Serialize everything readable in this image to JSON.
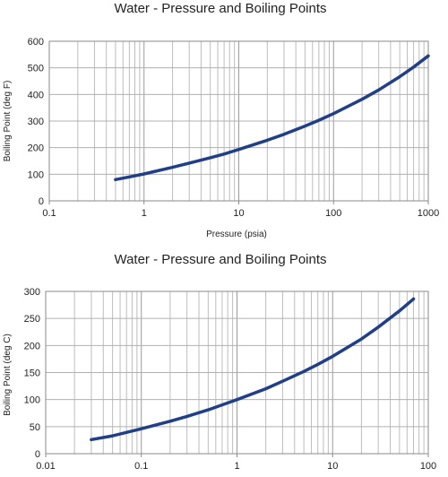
{
  "chart_data": [
    {
      "type": "line",
      "title": "Water - Pressure and Boiling Points",
      "xlabel": "Pressure (psia)",
      "ylabel": "Boiling Point (deg F)",
      "x_scale": "log",
      "xlim": [
        0.1,
        1000
      ],
      "ylim": [
        0,
        600
      ],
      "grid": true,
      "x_ticks": [
        {
          "value": 0.1,
          "label": "0.1"
        },
        {
          "value": 1,
          "label": "1"
        },
        {
          "value": 10,
          "label": "10"
        },
        {
          "value": 100,
          "label": "100"
        },
        {
          "value": 1000,
          "label": "1000"
        }
      ],
      "y_ticks": [
        {
          "value": 0,
          "label": "0"
        },
        {
          "value": 100,
          "label": "100"
        },
        {
          "value": 200,
          "label": "200"
        },
        {
          "value": 300,
          "label": "300"
        },
        {
          "value": 400,
          "label": "400"
        },
        {
          "value": 500,
          "label": "500"
        },
        {
          "value": 600,
          "label": "600"
        }
      ],
      "line_color": "#1f3f88",
      "series": [
        {
          "x": [
            0.5,
            0.7,
            1,
            2,
            3,
            5,
            7,
            10,
            20,
            30,
            50,
            70,
            100,
            200,
            300,
            500,
            700,
            1000
          ],
          "values": [
            80,
            90,
            101,
            126,
            142,
            162,
            176,
            193,
            228,
            250,
            281,
            303,
            328,
            382,
            417,
            467,
            503,
            545
          ]
        }
      ]
    },
    {
      "type": "line",
      "title": "Water - Pressure and Boiling Points",
      "xlabel": "",
      "ylabel": "Boiling Point (deg C)",
      "x_scale": "log",
      "xlim": [
        0.01,
        100
      ],
      "ylim": [
        0,
        300
      ],
      "grid": true,
      "x_ticks": [
        {
          "value": 0.01,
          "label": "0.01"
        },
        {
          "value": 0.1,
          "label": "0.1"
        },
        {
          "value": 1,
          "label": "1"
        },
        {
          "value": 10,
          "label": "10"
        },
        {
          "value": 100,
          "label": "100"
        }
      ],
      "y_ticks": [
        {
          "value": 0,
          "label": "0"
        },
        {
          "value": 50,
          "label": "50"
        },
        {
          "value": 100,
          "label": "100"
        },
        {
          "value": 150,
          "label": "150"
        },
        {
          "value": 200,
          "label": "200"
        },
        {
          "value": 250,
          "label": "250"
        },
        {
          "value": 300,
          "label": "300"
        }
      ],
      "line_color": "#1f3f88",
      "series": [
        {
          "x": [
            0.03,
            0.05,
            0.1,
            0.2,
            0.3,
            0.5,
            1,
            2,
            3,
            5,
            7,
            10,
            20,
            30,
            50,
            70
          ],
          "values": [
            26,
            33,
            46,
            60,
            69,
            81,
            100,
            120,
            134,
            152,
            165,
            180,
            212,
            234,
            264,
            286
          ]
        }
      ]
    }
  ]
}
